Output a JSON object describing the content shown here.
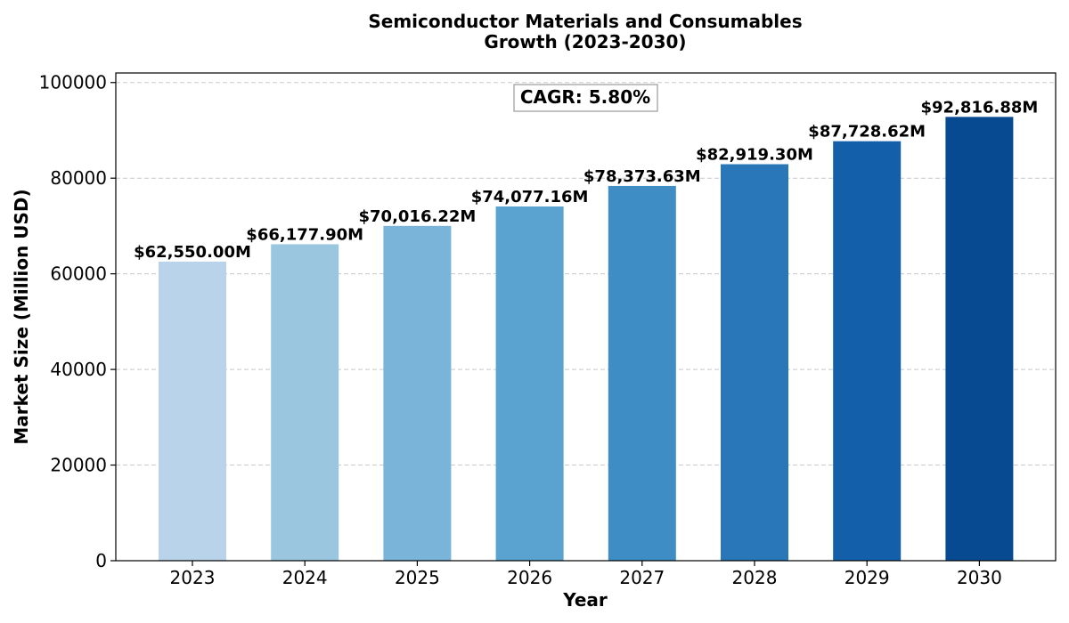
{
  "chart_data": {
    "type": "bar",
    "title": "Semiconductor Materials and Consumables",
    "subtitle": "Growth (2023-2030)",
    "xlabel": "Year",
    "ylabel": "Market Size (Million USD)",
    "categories": [
      "2023",
      "2024",
      "2025",
      "2026",
      "2027",
      "2028",
      "2029",
      "2030"
    ],
    "values": [
      62550.0,
      66177.9,
      70016.22,
      74077.16,
      78373.63,
      82919.3,
      87728.62,
      92816.88
    ],
    "data_labels": [
      "$62,550.00M",
      "$66,177.90M",
      "$70,016.22M",
      "$74,077.16M",
      "$78,373.63M",
      "$82,919.30M",
      "$87,728.62M",
      "$92,816.88M"
    ],
    "bar_colors": [
      "#b8d3ea",
      "#9ac6df",
      "#7ab5d9",
      "#5aa2cf",
      "#3e8dc5",
      "#2977b9",
      "#135faa",
      "#084a91"
    ],
    "ylim": [
      0,
      102000
    ],
    "yticks": [
      0,
      20000,
      40000,
      60000,
      80000,
      100000
    ],
    "ytick_labels": [
      "0",
      "20000",
      "40000",
      "60000",
      "80000",
      "100000"
    ],
    "grid": "y-dashed",
    "annotation": "CAGR: 5.80%"
  }
}
